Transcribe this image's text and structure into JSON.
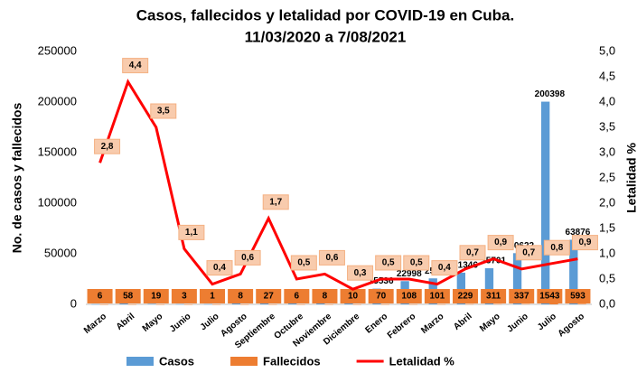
{
  "chart_data": {
    "type": "bar-line",
    "title": "Casos, fallecidos y letalidad por COVID-19 en Cuba.",
    "subtitle": "11/03/2020 a 7/08/2021",
    "ylabel": "No. de casos  y fallecidos",
    "y2label": "Letalidad %",
    "categories": [
      "Marzo",
      "Abril",
      "Mayo",
      "Junio",
      "Julio",
      "Agosto",
      "Septiembre",
      "Octubre",
      "Noviembre",
      "Diciembre",
      "Enero",
      "Febrero",
      "Marzo",
      "Abril",
      "Mayo",
      "Junio",
      "Julio",
      "Agosto"
    ],
    "series": [
      {
        "name": "Casos",
        "color": "#5b9bd5",
        "kind": "bar",
        "values": [
          212,
          1325,
          546,
          265,
          285,
          1432,
          1605,
          1265,
          1446,
          3675,
          15536,
          22998,
          25686,
          31346,
          35701,
          50622,
          200398,
          63876
        ]
      },
      {
        "name": "Fallecidos",
        "color": "#ed7d31",
        "kind": "bar",
        "values": [
          6,
          58,
          19,
          3,
          1,
          8,
          27,
          6,
          8,
          10,
          70,
          108,
          101,
          229,
          311,
          337,
          1543,
          593
        ]
      },
      {
        "name": "Letalidad %",
        "color": "#ff0000",
        "kind": "line",
        "axis": "y2",
        "values": [
          2.8,
          4.4,
          3.5,
          1.1,
          0.4,
          0.6,
          1.7,
          0.5,
          0.6,
          0.3,
          0.5,
          0.5,
          0.4,
          0.7,
          0.9,
          0.7,
          0.8,
          0.9
        ],
        "value_labels": [
          "2,8",
          "4,4",
          "3,5",
          "1,1",
          "0,4",
          "0,6",
          "1,7",
          "0,5",
          "0,6",
          "0,3",
          "0,5",
          "0,5",
          "0,4",
          "0,7",
          "0,9",
          "0,7",
          "0,8",
          "0,9"
        ]
      }
    ],
    "ylim": [
      0,
      250000
    ],
    "yticks": [
      0,
      50000,
      100000,
      150000,
      200000,
      250000
    ],
    "y2lim": [
      0,
      5
    ],
    "y2ticks": [
      {
        "value": 0,
        "label": "0,0"
      },
      {
        "value": 0.5,
        "label": "0,5"
      },
      {
        "value": 1,
        "label": "1,0"
      },
      {
        "value": 1.5,
        "label": "1,5"
      },
      {
        "value": 2,
        "label": "2,0"
      },
      {
        "value": 2.5,
        "label": "2,5"
      },
      {
        "value": 3,
        "label": "3,0"
      },
      {
        "value": 3.5,
        "label": "3,5"
      },
      {
        "value": 4,
        "label": "4,0"
      },
      {
        "value": 4.5,
        "label": "4,5"
      },
      {
        "value": 5,
        "label": "5,0"
      }
    ]
  }
}
